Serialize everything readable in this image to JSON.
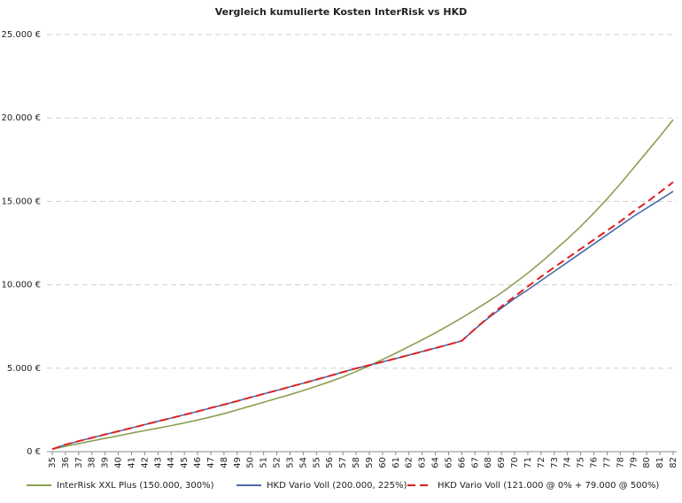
{
  "chart_data": {
    "type": "line",
    "title": "Vergleich kumulierte Kosten InterRisk vs HKD",
    "categories": [
      35,
      36,
      37,
      38,
      39,
      40,
      41,
      42,
      43,
      44,
      45,
      46,
      47,
      48,
      49,
      50,
      51,
      52,
      53,
      54,
      55,
      56,
      57,
      58,
      59,
      60,
      61,
      62,
      63,
      64,
      65,
      66,
      67,
      68,
      69,
      70,
      71,
      72,
      73,
      74,
      75,
      76,
      77,
      78,
      79,
      80,
      81,
      82
    ],
    "series": [
      {
        "name": "InterRisk XXL Plus (150.000, 300%)",
        "color": "#8aa052",
        "dash": false,
        "values": [
          150,
          320,
          480,
          640,
          800,
          950,
          1110,
          1260,
          1410,
          1560,
          1720,
          1890,
          2080,
          2280,
          2500,
          2730,
          2960,
          3190,
          3420,
          3660,
          3920,
          4190,
          4480,
          4800,
          5150,
          5520,
          5900,
          6300,
          6700,
          7120,
          7560,
          8020,
          8500,
          9000,
          9520,
          10100,
          10700,
          11350,
          12050,
          12750,
          13500,
          14300,
          15150,
          16050,
          17000,
          17950,
          18900,
          19900
        ]
      },
      {
        "name": "HKD Vario Voll (200.000, 225%)",
        "color": "#4a6aa8",
        "dash": false,
        "values": [
          150,
          420,
          630,
          830,
          1030,
          1220,
          1420,
          1620,
          1820,
          2010,
          2210,
          2410,
          2620,
          2820,
          3030,
          3250,
          3460,
          3670,
          3890,
          4100,
          4320,
          4540,
          4770,
          4990,
          5180,
          5380,
          5580,
          5790,
          6000,
          6210,
          6420,
          6640,
          7350,
          8000,
          8600,
          9180,
          9700,
          10250,
          10800,
          11350,
          11900,
          12450,
          13000,
          13550,
          14100,
          14600,
          15100,
          15600
        ]
      },
      {
        "name": "HKD Vario Voll (121.000 @ 0% + 79.000 @ 500%)",
        "color": "#e02020",
        "dash": true,
        "values": [
          150,
          420,
          630,
          830,
          1030,
          1220,
          1420,
          1620,
          1820,
          2010,
          2210,
          2410,
          2620,
          2820,
          3030,
          3250,
          3460,
          3670,
          3890,
          4100,
          4320,
          4540,
          4770,
          4990,
          5180,
          5380,
          5580,
          5790,
          6000,
          6210,
          6420,
          6640,
          7350,
          8050,
          8700,
          9300,
          9900,
          10480,
          11050,
          11600,
          12150,
          12700,
          13250,
          13800,
          14400,
          14950,
          15550,
          16150
        ]
      }
    ],
    "ylim": [
      0,
      25000
    ],
    "yticks": [
      {
        "value": 0,
        "label": "0 €"
      },
      {
        "value": 5000,
        "label": "5.000 €"
      },
      {
        "value": 10000,
        "label": "10.000 €"
      },
      {
        "value": 15000,
        "label": "15.000 €"
      },
      {
        "value": 20000,
        "label": "20.000 €"
      },
      {
        "value": 25000,
        "label": "25.000 €"
      }
    ],
    "grid": true,
    "legend": "bottom"
  }
}
